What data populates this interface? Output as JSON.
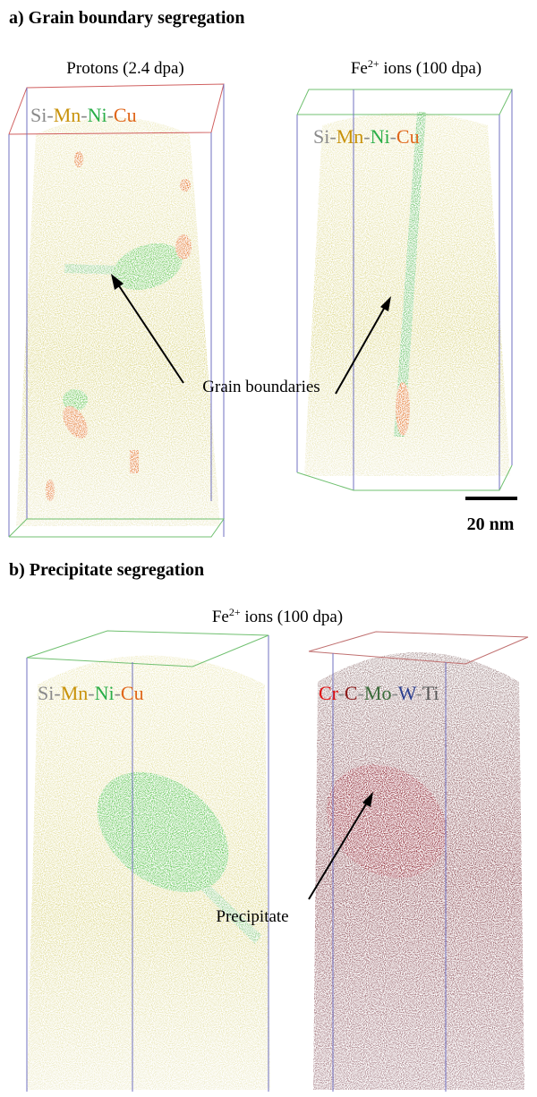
{
  "panel_a": {
    "title": "a) Grain boundary segregation",
    "left_label": "Protons (2.4 dpa)",
    "right_label": {
      "species": "Fe",
      "charge": "2+",
      "rest": " ions (100 dpa)"
    },
    "annotation": "Grain boundaries",
    "scale_bar": "20 nm"
  },
  "panel_b": {
    "title": "b) Precipitate segregation",
    "label": {
      "species": "Fe",
      "charge": "2+",
      "rest": " ions (100 dpa)"
    },
    "annotation": "Precipitate"
  },
  "solute_legend": {
    "separator": "-",
    "elements": [
      {
        "name": "Si",
        "color": "#8a8a8a"
      },
      {
        "name": "Mn",
        "color": "#c8920a"
      },
      {
        "name": "Ni",
        "color": "#2aae48"
      },
      {
        "name": "Cu",
        "color": "#e0661a"
      }
    ]
  },
  "carbide_legend": {
    "separator": "-",
    "elements": [
      {
        "name": "Cr",
        "color": "#e01010"
      },
      {
        "name": "C",
        "color": "#8b1a1a"
      },
      {
        "name": "Mo",
        "color": "#3a6b3a"
      },
      {
        "name": "W",
        "color": "#2b3f8f"
      },
      {
        "name": "Ti",
        "color": "#555555"
      }
    ]
  }
}
